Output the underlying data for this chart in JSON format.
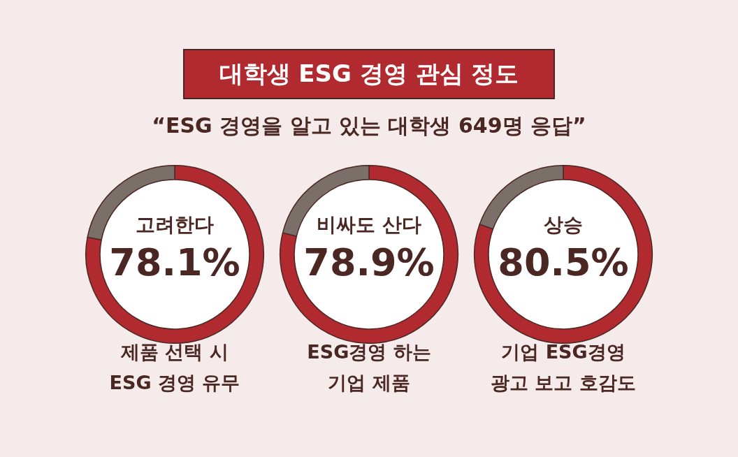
{
  "chart_data": [
    {
      "type": "other",
      "title": "대학생 ESG 경영 관심 정도",
      "subtitle": "“ESG 경영을 알고 있는 대학생 649명 응답”"
    },
    {
      "type": "donut",
      "title": "제품 선택 시\nESG 경영 유무",
      "categories": [
        "고려한다",
        null
      ],
      "values": [
        78.1,
        21.9
      ],
      "colors": [
        "#b02a2f",
        "#7b6f6a"
      ],
      "value_labels": [
        "78.1%",
        null
      ]
    },
    {
      "type": "donut",
      "title": "ESG경영 하는\n기업 제품",
      "categories": [
        "비싸도 산다",
        null
      ],
      "values": [
        78.9,
        21.1
      ],
      "colors": [
        "#b02a2f",
        "#7b6f6a"
      ],
      "value_labels": [
        "78.9%",
        null
      ]
    },
    {
      "type": "donut",
      "title": "기업 ESG경영\n광고 보고 호감도",
      "categories": [
        "상승",
        null
      ],
      "values": [
        80.5,
        19.5
      ],
      "colors": [
        "#b02a2f",
        "#7b6f6a"
      ],
      "value_labels": [
        "80.5%",
        null
      ]
    }
  ]
}
